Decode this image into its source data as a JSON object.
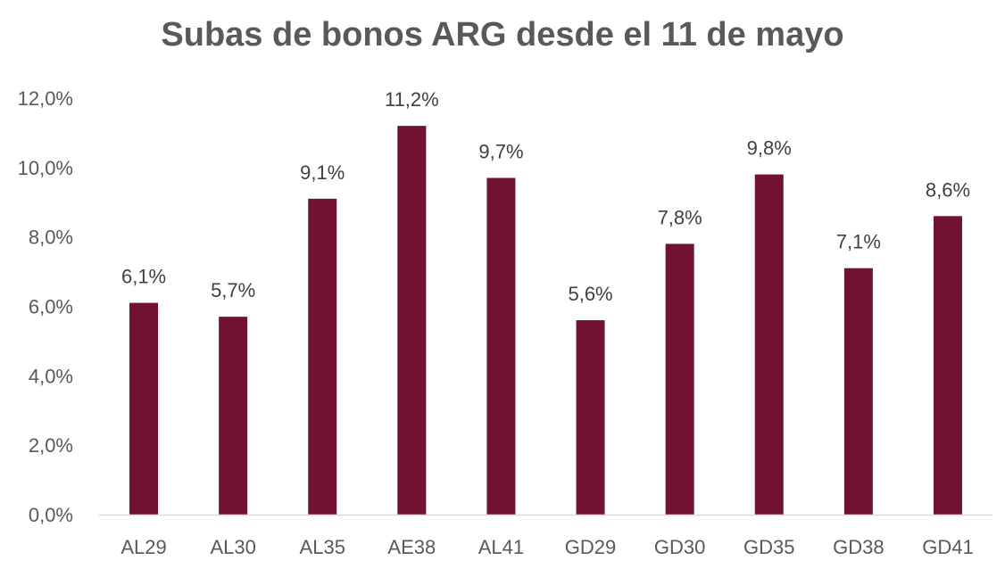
{
  "chart_data": {
    "type": "bar",
    "title": "Subas de bonos ARG desde el 11 de mayo",
    "categories": [
      "AL29",
      "AL30",
      "AL35",
      "AE38",
      "AL41",
      "GD29",
      "GD30",
      "GD35",
      "GD38",
      "GD41"
    ],
    "values": [
      6.1,
      5.7,
      9.1,
      11.2,
      9.7,
      5.6,
      7.8,
      9.8,
      7.1,
      8.6
    ],
    "value_labels": [
      "6,1%",
      "5,7%",
      "9,1%",
      "11,2%",
      "9,7%",
      "5,6%",
      "7,8%",
      "9,8%",
      "7,1%",
      "8,6%"
    ],
    "y_ticks": [
      0,
      2,
      4,
      6,
      8,
      10,
      12
    ],
    "y_tick_labels": [
      "0,0%",
      "2,0%",
      "4,0%",
      "6,0%",
      "8,0%",
      "10,0%",
      "12,0%"
    ],
    "ylim": [
      0,
      12
    ],
    "xlabel": "",
    "ylabel": "",
    "grid": false,
    "legend": "none",
    "colors": {
      "bar": "#721231",
      "axis": "#d9d9d9",
      "text": "#595959",
      "label": "#404040"
    }
  }
}
